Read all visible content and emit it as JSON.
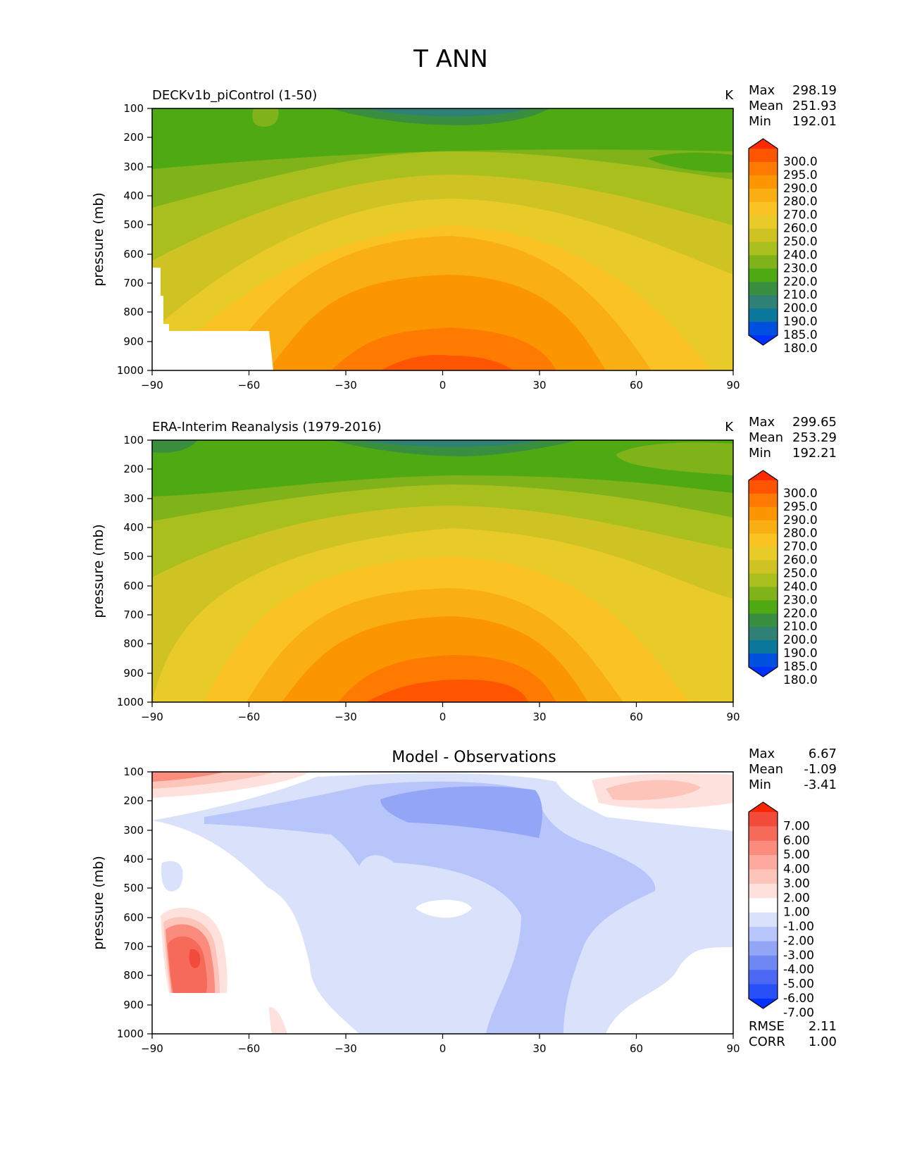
{
  "figure": {
    "title": "T ANN"
  },
  "chart_data": [
    {
      "type": "heatmap",
      "title": "DECKv1b_piControl (1-50)",
      "units": "K",
      "ylabel": "pressure (mb)",
      "xlabel": "",
      "xlim": [
        -90,
        90
      ],
      "ylim": [
        1000,
        100
      ],
      "y_scale": "linear (inverted)",
      "x_ticks": [
        "−90",
        "−60",
        "−30",
        "0",
        "30",
        "60",
        "90"
      ],
      "y_ticks": [
        "100",
        "200",
        "300",
        "400",
        "500",
        "600",
        "700",
        "800",
        "900",
        "1000"
      ],
      "stats": [
        {
          "label": "Max",
          "value": "298.19"
        },
        {
          "label": "Mean",
          "value": "251.93"
        },
        {
          "label": "Min",
          "value": "192.01"
        }
      ],
      "colorbar": {
        "levels": [
          "300.0",
          "295.0",
          "290.0",
          "280.0",
          "270.0",
          "260.0",
          "250.0",
          "240.0",
          "230.0",
          "220.0",
          "210.0",
          "200.0",
          "190.0",
          "185.0",
          "180.0"
        ],
        "colors": [
          "#ff2a00",
          "#ff5500",
          "#ff7a00",
          "#fc9600",
          "#f9ae14",
          "#fbc224",
          "#e8ca28",
          "#cfc324",
          "#a9bf1e",
          "#7fb319",
          "#4ea912",
          "#3a8e40",
          "#2f8175",
          "#0b779a",
          "#0050e0",
          "#0032ff"
        ],
        "extend": "both"
      },
      "grid": false,
      "masked_region": "topography below surface near -90 to -52 latitude, 650-1000 mb"
    },
    {
      "type": "heatmap",
      "title": "ERA-Interim Reanalysis (1979-2016)",
      "units": "K",
      "ylabel": "pressure (mb)",
      "xlabel": "",
      "xlim": [
        -90,
        90
      ],
      "ylim": [
        1000,
        100
      ],
      "x_ticks": [
        "−90",
        "−60",
        "−30",
        "0",
        "30",
        "60",
        "90"
      ],
      "y_ticks": [
        "100",
        "200",
        "300",
        "400",
        "500",
        "600",
        "700",
        "800",
        "900",
        "1000"
      ],
      "stats": [
        {
          "label": "Max",
          "value": "299.65"
        },
        {
          "label": "Mean",
          "value": "253.29"
        },
        {
          "label": "Min",
          "value": "192.21"
        }
      ],
      "colorbar": {
        "levels": [
          "300.0",
          "295.0",
          "290.0",
          "280.0",
          "270.0",
          "260.0",
          "250.0",
          "240.0",
          "230.0",
          "220.0",
          "210.0",
          "200.0",
          "190.0",
          "185.0",
          "180.0"
        ],
        "colors": [
          "#ff2a00",
          "#ff5500",
          "#ff7a00",
          "#fc9600",
          "#f9ae14",
          "#fbc224",
          "#e8ca28",
          "#cfc324",
          "#a9bf1e",
          "#7fb319",
          "#4ea912",
          "#3a8e40",
          "#2f8175",
          "#0b779a",
          "#0050e0",
          "#0032ff"
        ],
        "extend": "both"
      },
      "grid": false
    },
    {
      "type": "heatmap",
      "title": "Model - Observations",
      "units": "",
      "ylabel": "pressure (mb)",
      "xlabel": "",
      "xlim": [
        -90,
        90
      ],
      "ylim": [
        1000,
        100
      ],
      "x_ticks": [
        "−90",
        "−60",
        "−30",
        "0",
        "30",
        "60",
        "90"
      ],
      "y_ticks": [
        "100",
        "200",
        "300",
        "400",
        "500",
        "600",
        "700",
        "800",
        "900",
        "1000"
      ],
      "stats": [
        {
          "label": "Max",
          "value": "6.67"
        },
        {
          "label": "Mean",
          "value": "-1.09"
        },
        {
          "label": "Min",
          "value": "-3.41"
        }
      ],
      "metrics": [
        {
          "label": "RMSE",
          "value": "2.11"
        },
        {
          "label": "CORR",
          "value": "1.00"
        }
      ],
      "colorbar": {
        "levels": [
          "7.00",
          "6.00",
          "5.00",
          "4.00",
          "3.00",
          "2.00",
          "1.00",
          "-1.00",
          "-2.00",
          "-3.00",
          "-4.00",
          "-5.00",
          "-6.00",
          "-7.00"
        ],
        "colors": [
          "#ff2400",
          "#f24b3c",
          "#f66a5a",
          "#fb8b7c",
          "#fda99d",
          "#fdc4ba",
          "#fee0dc",
          "#ffffff",
          "#d9e1fb",
          "#b7c5fa",
          "#92a5f7",
          "#6f87f3",
          "#4b68f5",
          "#2850f8",
          "#0032ff"
        ],
        "extend": "both"
      },
      "grid": false
    }
  ]
}
